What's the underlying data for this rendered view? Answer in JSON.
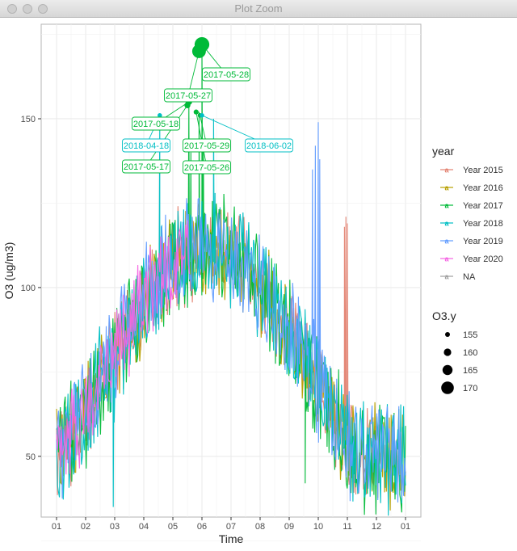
{
  "window": {
    "title": "Plot Zoom"
  },
  "chart_data": {
    "type": "line",
    "title": "",
    "xlabel": "Time",
    "ylabel": "O3 (ug/m3)",
    "x_ticks": [
      "01",
      "02",
      "03",
      "04",
      "05",
      "06",
      "07",
      "08",
      "09",
      "10",
      "11",
      "12",
      "01"
    ],
    "y_ticks": [
      50,
      100,
      150
    ],
    "ylim": [
      32,
      178
    ],
    "grid": true,
    "legend_color_title": "year",
    "legend_size_title": "O3.y",
    "size_legend_values": [
      155,
      160,
      165,
      170
    ],
    "series": [
      {
        "name": "Year 2015",
        "color": "#E38372",
        "seed": 11,
        "xmin": 0.0,
        "xmax": 11.05,
        "amp": 6,
        "extra": [
          [
            9.9,
            118
          ],
          [
            9.95,
            121
          ],
          [
            10.0,
            119
          ]
        ]
      },
      {
        "name": "Year 2016",
        "color": "#B79F00",
        "seed": 23,
        "xmin": 0.0,
        "xmax": 12.0,
        "amp": 7,
        "extra": []
      },
      {
        "name": "Year 2017",
        "color": "#00BA38",
        "seed": 37,
        "xmin": 0.0,
        "xmax": 12.0,
        "amp": 9,
        "extra": [
          [
            8.55,
            42
          ],
          [
            8.57,
            82
          ],
          [
            4.55,
            154
          ],
          [
            4.62,
            140
          ],
          [
            4.9,
            152
          ],
          [
            5.0,
            171
          ],
          [
            5.05,
            142
          ]
        ]
      },
      {
        "name": "Year 2018",
        "color": "#00BFC4",
        "seed": 49,
        "xmin": 0.0,
        "xmax": 12.0,
        "amp": 8,
        "extra": [
          [
            1.95,
            35
          ],
          [
            1.98,
            60
          ],
          [
            3.55,
            150
          ],
          [
            3.6,
            118
          ],
          [
            5.4,
            150
          ],
          [
            5.45,
            128
          ]
        ]
      },
      {
        "name": "Year 2019",
        "color": "#619CFF",
        "seed": 61,
        "xmin": 0.0,
        "xmax": 12.0,
        "amp": 8,
        "extra": [
          [
            8.8,
            135
          ],
          [
            8.9,
            142
          ],
          [
            9.0,
            149
          ],
          [
            9.05,
            138
          ]
        ]
      },
      {
        "name": "Year 2020",
        "color": "#F564E3",
        "seed": 73,
        "xmin": 0.0,
        "xmax": 4.6,
        "amp": 6,
        "extra": []
      },
      {
        "name": "NA",
        "color": "#9E9E9E",
        "seed": 0,
        "xmin": 0,
        "xmax": 0,
        "amp": 0,
        "extra": []
      }
    ],
    "highlight_points": [
      {
        "series": "Year 2017",
        "x": 5.0,
        "y": 172,
        "size": 172,
        "label": "2017-05-28"
      },
      {
        "series": "Year 2017",
        "x": 4.9,
        "y": 170,
        "size": 170,
        "label": "2017-05-27"
      },
      {
        "series": "Year 2017",
        "x": 4.55,
        "y": 155,
        "size": 155,
        "label": "2017-05-18"
      },
      {
        "series": "Year 2017",
        "x": 4.8,
        "y": 152,
        "size": 152,
        "label": "2017-05-26"
      },
      {
        "series": "Year 2017",
        "x": 4.5,
        "y": 154,
        "size": 154,
        "label": "2017-05-17"
      },
      {
        "series": "Year 2018",
        "x": 3.55,
        "y": 151,
        "size": 151,
        "label": "2018-04-18"
      },
      {
        "series": "Year 2017",
        "x": 4.93,
        "y": 151,
        "size": 151,
        "label": "2017-05-29"
      },
      {
        "series": "Year 2018",
        "x": 5.0,
        "y": 151,
        "size": 151,
        "label": "2018-06-02"
      }
    ]
  }
}
